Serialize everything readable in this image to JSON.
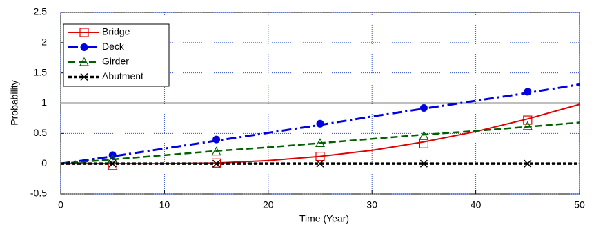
{
  "chart_data": {
    "type": "line",
    "xlabel": "Time (Year)",
    "ylabel": "Probability",
    "x": [
      0,
      5,
      10,
      15,
      20,
      25,
      30,
      35,
      40,
      45,
      50
    ],
    "marker_x": [
      5,
      15,
      25,
      35,
      45
    ],
    "series": [
      {
        "name": "Bridge",
        "color": "#e00000",
        "dash": "solid",
        "marker": "square",
        "values": [
          0,
          0,
          0,
          0.01,
          0.05,
          0.12,
          0.22,
          0.36,
          0.53,
          0.74,
          0.98
        ],
        "markers": [
          -0.03,
          0.01,
          0.12,
          0.33,
          0.72
        ]
      },
      {
        "name": "Deck",
        "color": "#0000e0",
        "dash": "dashdot",
        "marker": "circle",
        "values": [
          0,
          0.12,
          0.25,
          0.38,
          0.51,
          0.64,
          0.78,
          0.91,
          1.04,
          1.17,
          1.31
        ],
        "markers": [
          0.14,
          0.4,
          0.66,
          0.92,
          1.19
        ]
      },
      {
        "name": "Girder",
        "color": "#006000",
        "dash": "dashed",
        "marker": "triangle",
        "values": [
          0,
          0.07,
          0.14,
          0.21,
          0.27,
          0.34,
          0.41,
          0.48,
          0.54,
          0.61,
          0.68
        ],
        "markers": [
          0.07,
          0.2,
          0.34,
          0.46,
          0.62
        ]
      },
      {
        "name": "Abutment",
        "color": "#000000",
        "dash": "shortdash",
        "marker": "x",
        "values": [
          0,
          0,
          0,
          0,
          0,
          0,
          0,
          0,
          0,
          0,
          0
        ],
        "markers": [
          0,
          0,
          0,
          0,
          0
        ]
      }
    ],
    "hlines": [
      1
    ],
    "xlim": [
      0,
      50
    ],
    "xticks": [
      0,
      10,
      20,
      30,
      40,
      50
    ],
    "ylim": [
      -0.5,
      2.5
    ],
    "yticks": [
      -0.5,
      0,
      0.5,
      1,
      1.5,
      2,
      2.5
    ],
    "grid": true,
    "legend": "upper left"
  }
}
